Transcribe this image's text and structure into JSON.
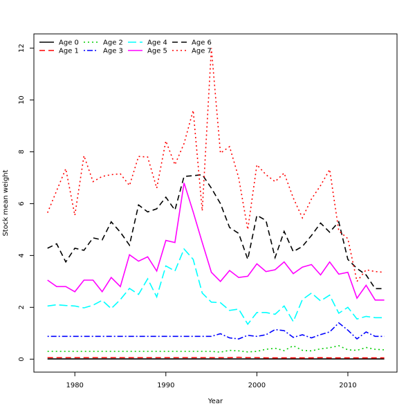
{
  "chart_data": {
    "type": "line",
    "title": "",
    "xlabel": "Year",
    "ylabel": "Stock mean weight",
    "xlim": [
      1975.5,
      2015.4
    ],
    "ylim": [
      -0.5,
      12.55
    ],
    "xticks": [
      1980,
      1990,
      2000,
      2010
    ],
    "yticks": [
      0,
      2,
      4,
      6,
      8,
      10,
      12
    ],
    "legend_position": "top-left",
    "grid": false,
    "x": [
      1977,
      1978,
      1979,
      1980,
      1981,
      1982,
      1983,
      1984,
      1985,
      1986,
      1987,
      1988,
      1989,
      1990,
      1991,
      1992,
      1993,
      1994,
      1995,
      1996,
      1997,
      1998,
      1999,
      2000,
      2001,
      2002,
      2003,
      2004,
      2005,
      2006,
      2007,
      2008,
      2009,
      2010,
      2011,
      2012,
      2013,
      2014
    ],
    "series": [
      {
        "name": "Age 0",
        "color": "#000000",
        "dash": "solid",
        "values": [
          0.01,
          0.01,
          0.01,
          0.01,
          0.01,
          0.01,
          0.01,
          0.01,
          0.01,
          0.01,
          0.01,
          0.01,
          0.01,
          0.01,
          0.01,
          0.01,
          0.01,
          0.01,
          0.01,
          0.01,
          0.01,
          0.01,
          0.01,
          0.01,
          0.01,
          0.01,
          0.01,
          0.01,
          0.01,
          0.01,
          0.01,
          0.01,
          0.01,
          0.01,
          0.01,
          0.01,
          0.01,
          0.01
        ]
      },
      {
        "name": "Age 1",
        "color": "#ff0000",
        "dash": "dashed",
        "values": [
          0.06,
          0.06,
          0.06,
          0.06,
          0.06,
          0.06,
          0.06,
          0.06,
          0.06,
          0.06,
          0.06,
          0.06,
          0.06,
          0.06,
          0.06,
          0.06,
          0.06,
          0.06,
          0.06,
          0.06,
          0.06,
          0.07,
          0.06,
          0.06,
          0.05,
          0.05,
          0.05,
          0.05,
          0.05,
          0.05,
          0.06,
          0.05,
          0.05,
          0.05,
          0.05,
          0.05,
          0.05,
          0.05
        ]
      },
      {
        "name": "Age 2",
        "color": "#00cd00",
        "dash": "dotted",
        "values": [
          0.3,
          0.3,
          0.3,
          0.3,
          0.3,
          0.3,
          0.3,
          0.3,
          0.3,
          0.3,
          0.3,
          0.3,
          0.3,
          0.3,
          0.3,
          0.3,
          0.3,
          0.3,
          0.3,
          0.27,
          0.34,
          0.32,
          0.28,
          0.3,
          0.38,
          0.42,
          0.33,
          0.52,
          0.34,
          0.32,
          0.4,
          0.44,
          0.52,
          0.36,
          0.34,
          0.45,
          0.38,
          0.36
        ]
      },
      {
        "name": "Age 3",
        "color": "#0000ff",
        "dash": "dotdash",
        "values": [
          0.88,
          0.88,
          0.88,
          0.88,
          0.88,
          0.88,
          0.88,
          0.88,
          0.88,
          0.88,
          0.88,
          0.88,
          0.88,
          0.88,
          0.88,
          0.88,
          0.88,
          0.88,
          0.88,
          0.98,
          0.82,
          0.78,
          0.92,
          0.88,
          0.94,
          1.14,
          1.1,
          0.84,
          0.94,
          0.82,
          0.95,
          1.05,
          1.4,
          1.12,
          0.78,
          1.05,
          0.88,
          0.88
        ]
      },
      {
        "name": "Age 4",
        "color": "#00ffff",
        "dash": "longdash",
        "values": [
          2.05,
          2.1,
          2.07,
          2.05,
          1.98,
          2.08,
          2.27,
          1.95,
          2.3,
          2.73,
          2.5,
          3.1,
          2.4,
          3.6,
          3.4,
          4.25,
          3.85,
          2.55,
          2.2,
          2.18,
          1.88,
          1.93,
          1.35,
          1.8,
          1.8,
          1.73,
          2.05,
          1.45,
          2.3,
          2.55,
          2.25,
          2.47,
          1.77,
          2.0,
          1.55,
          1.65,
          1.6,
          1.6
        ]
      },
      {
        "name": "Age 5",
        "color": "#ff00ff",
        "dash": "solid",
        "values": [
          3.05,
          2.8,
          2.8,
          2.6,
          3.05,
          3.05,
          2.6,
          3.15,
          2.8,
          4.03,
          3.78,
          3.95,
          3.4,
          4.58,
          4.5,
          6.8,
          5.68,
          4.5,
          3.35,
          3.0,
          3.42,
          3.15,
          3.2,
          3.68,
          3.38,
          3.45,
          3.75,
          3.3,
          3.55,
          3.65,
          3.25,
          3.75,
          3.28,
          3.35,
          2.35,
          2.85,
          2.28,
          2.28
        ]
      },
      {
        "name": "Age 6",
        "color": "#000000",
        "dash": "dashed",
        "values": [
          4.28,
          4.45,
          3.75,
          4.28,
          4.2,
          4.68,
          4.6,
          5.3,
          4.9,
          4.4,
          5.95,
          5.68,
          5.8,
          6.25,
          5.75,
          7.05,
          7.08,
          7.12,
          6.6,
          6.0,
          5.08,
          4.85,
          3.85,
          5.55,
          5.35,
          3.92,
          4.93,
          4.15,
          4.35,
          4.77,
          5.25,
          4.9,
          5.3,
          3.85,
          3.5,
          3.25,
          2.72,
          2.72
        ]
      },
      {
        "name": "Age 7",
        "color": "#ff0000",
        "dash": "dotted",
        "values": [
          5.65,
          6.5,
          7.35,
          5.55,
          7.85,
          6.85,
          7.05,
          7.12,
          7.15,
          6.7,
          7.82,
          7.8,
          6.6,
          8.42,
          7.5,
          8.32,
          9.6,
          5.72,
          12.0,
          7.95,
          8.2,
          7.0,
          5.0,
          7.5,
          7.12,
          6.85,
          7.18,
          6.22,
          5.45,
          6.18,
          6.7,
          7.32,
          4.95,
          4.65,
          3.0,
          3.45,
          3.38,
          3.35
        ]
      }
    ]
  }
}
